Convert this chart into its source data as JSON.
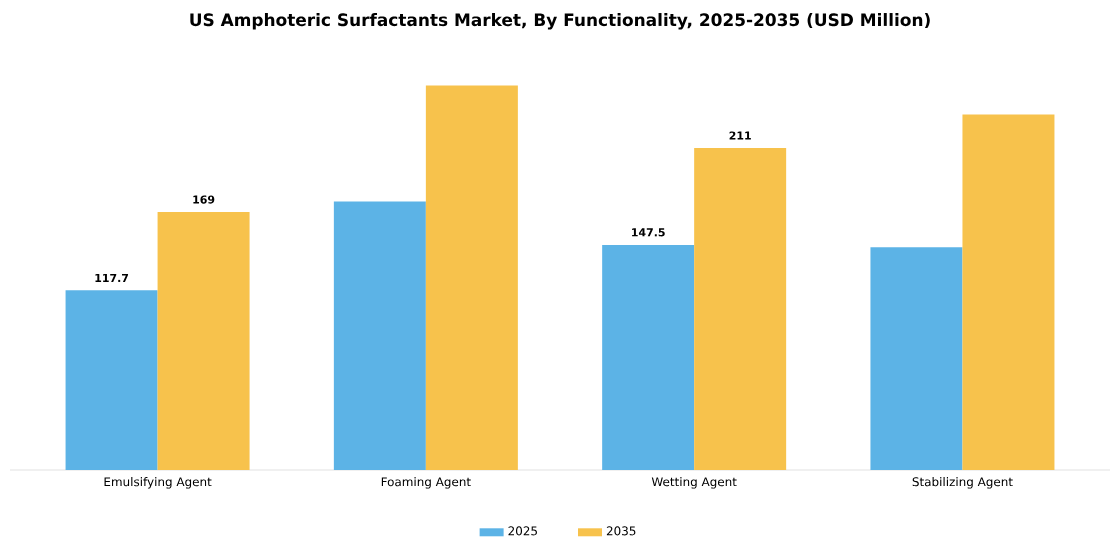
{
  "chart_data": {
    "type": "bar",
    "title": "US Amphoteric Surfactants Market, By Functionality, 2025-2035 (USD Million)",
    "categories": [
      "Emulsifying Agent",
      "Foaming Agent",
      "Wetting Agent",
      "Stabilizing Agent"
    ],
    "series": [
      {
        "name": "2025",
        "color": "#5cb3e6",
        "values": [
          117.7,
          176,
          147.5,
          146
        ],
        "value_labels": [
          "117.7",
          null,
          "147.5",
          null
        ]
      },
      {
        "name": "2035",
        "color": "#f7c24c",
        "values": [
          169,
          252,
          211,
          233
        ],
        "value_labels": [
          "169",
          null,
          "211",
          null
        ]
      }
    ],
    "legend": "bottom"
  }
}
